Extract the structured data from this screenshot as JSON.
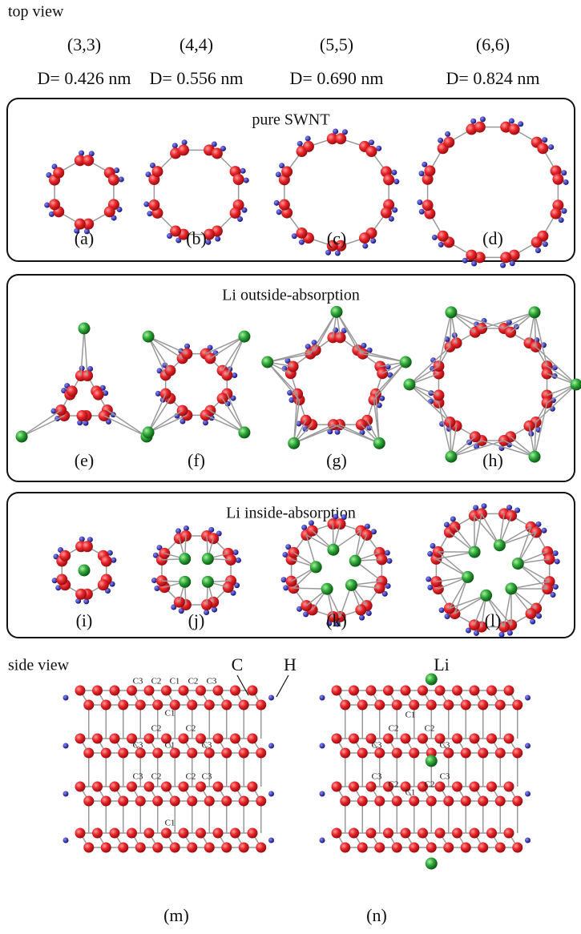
{
  "top_view_label": "top view",
  "columns": [
    {
      "chirality": "(3,3)",
      "diameter": "D= 0.426 nm"
    },
    {
      "chirality": "(4,4)",
      "diameter": "D= 0.556 nm"
    },
    {
      "chirality": "(5,5)",
      "diameter": "D= 0.690 nm"
    },
    {
      "chirality": "(6,6)",
      "diameter": "D= 0.824 nm"
    }
  ],
  "panels": [
    {
      "title": "pure SWNT",
      "labels": [
        "(a)",
        "(b)",
        "(c)",
        "(d)"
      ]
    },
    {
      "title": "Li outside-absorption",
      "labels": [
        "(e)",
        "(f)",
        "(g)",
        "(h)"
      ]
    },
    {
      "title": "Li inside-absorption",
      "labels": [
        "(i)",
        "(j)",
        "(k)",
        "(l)"
      ]
    }
  ],
  "side_view": {
    "label": "side view",
    "atom_labels": {
      "carbon": "C",
      "hydrogen": "H",
      "lithium": "Li"
    },
    "site_labels": [
      "C1",
      "C2",
      "C3"
    ],
    "panel_labels": [
      "(m)",
      "(n)"
    ]
  }
}
